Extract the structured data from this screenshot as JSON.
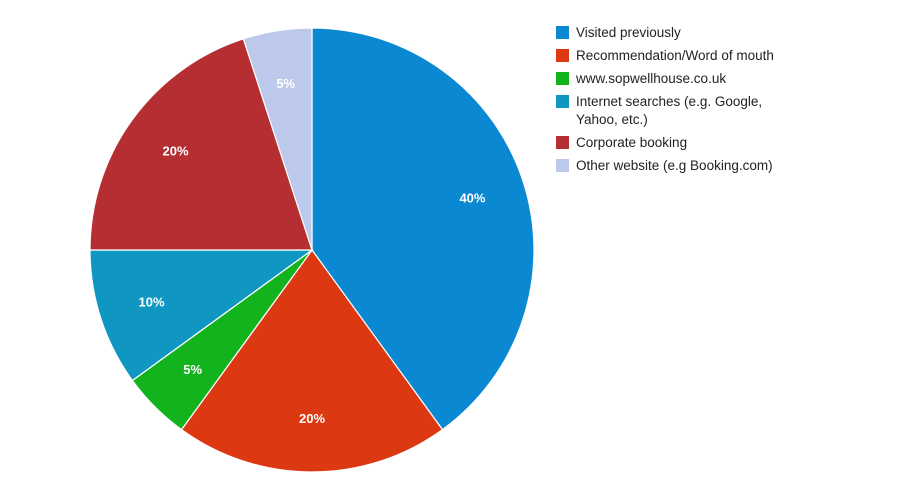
{
  "chart_data": {
    "type": "pie",
    "title": "",
    "legend_position": "right",
    "slices": [
      {
        "label": "Visited previously",
        "value": 40,
        "display": "40%",
        "color": "#0a89d2"
      },
      {
        "label": "Recommendation/Word of mouth",
        "value": 20,
        "display": "20%",
        "color": "#dc3912"
      },
      {
        "label": "www.sopwellhouse.co.uk",
        "value": 5,
        "display": "5%",
        "color": "#13b31e"
      },
      {
        "label": "Internet searches (e.g. Google, Yahoo, etc.)",
        "value": 10,
        "display": "10%",
        "color": "#0f97c1"
      },
      {
        "label": "Corporate booking",
        "value": 20,
        "display": "20%",
        "color": "#b52f32"
      },
      {
        "label": "Other website (e.g Booking.com)",
        "value": 5,
        "display": "5%",
        "color": "#bcc9ea"
      }
    ]
  }
}
